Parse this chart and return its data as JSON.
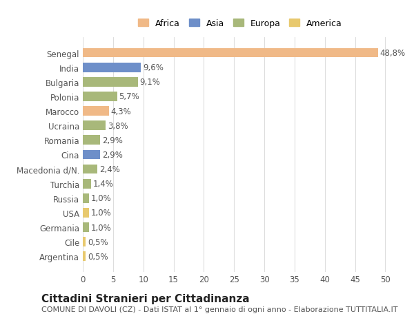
{
  "countries": [
    "Senegal",
    "India",
    "Bulgaria",
    "Polonia",
    "Marocco",
    "Ucraina",
    "Romania",
    "Cina",
    "Macedonia d/N.",
    "Turchia",
    "Russia",
    "USA",
    "Germania",
    "Cile",
    "Argentina"
  ],
  "values": [
    48.8,
    9.6,
    9.1,
    5.7,
    4.3,
    3.8,
    2.9,
    2.9,
    2.4,
    1.4,
    1.0,
    1.0,
    1.0,
    0.5,
    0.5
  ],
  "labels": [
    "48,8%",
    "9,6%",
    "9,1%",
    "5,7%",
    "4,3%",
    "3,8%",
    "2,9%",
    "2,9%",
    "2,4%",
    "1,4%",
    "1,0%",
    "1,0%",
    "1,0%",
    "0,5%",
    "0,5%"
  ],
  "colors": [
    "#f0b987",
    "#6e8fc9",
    "#a8b87a",
    "#a8b87a",
    "#f0b987",
    "#a8b87a",
    "#a8b87a",
    "#6e8fc9",
    "#a8b87a",
    "#a8b87a",
    "#a8b87a",
    "#e8c96e",
    "#a8b87a",
    "#e8c96e",
    "#e8c96e"
  ],
  "legend": [
    {
      "label": "Africa",
      "color": "#f0b987"
    },
    {
      "label": "Asia",
      "color": "#6e8fc9"
    },
    {
      "label": "Europa",
      "color": "#a8b87a"
    },
    {
      "label": "America",
      "color": "#e8c96e"
    }
  ],
  "xlim": [
    0,
    52
  ],
  "xticks": [
    0,
    5,
    10,
    15,
    20,
    25,
    30,
    35,
    40,
    45,
    50
  ],
  "title": "Cittadini Stranieri per Cittadinanza",
  "subtitle": "COMUNE DI DAVOLI (CZ) - Dati ISTAT al 1° gennaio di ogni anno - Elaborazione TUTTITALIA.IT",
  "background_color": "#ffffff",
  "grid_color": "#dddddd",
  "bar_height": 0.65,
  "label_fontsize": 8.5,
  "tick_fontsize": 8.5,
  "title_fontsize": 11,
  "subtitle_fontsize": 8
}
